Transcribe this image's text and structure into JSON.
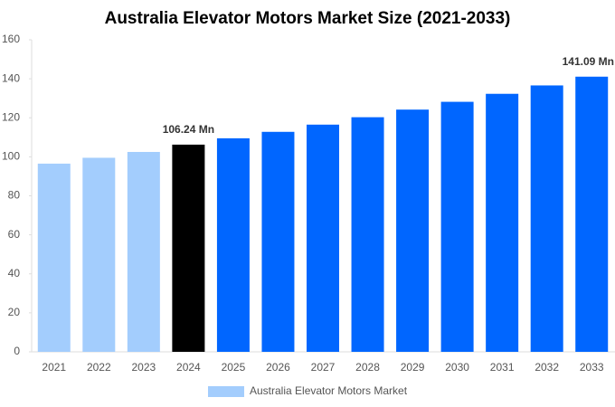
{
  "chart_data": {
    "type": "bar",
    "title": "Australia Elevator Motors Market Size (2021-2033)",
    "categories": [
      "2021",
      "2022",
      "2023",
      "2024",
      "2025",
      "2026",
      "2027",
      "2028",
      "2029",
      "2030",
      "2031",
      "2032",
      "2033"
    ],
    "series": [
      {
        "name": "Australia Elevator Motors Market",
        "color": "#a3cdfd",
        "bar_colors": [
          "#a3cdfd",
          "#a3cdfd",
          "#a3cdfd",
          "#000000",
          "#0066ff",
          "#0066ff",
          "#0066ff",
          "#0066ff",
          "#0066ff",
          "#0066ff",
          "#0066ff",
          "#0066ff",
          "#0066ff"
        ],
        "values": [
          96.5,
          99.5,
          102.5,
          106.24,
          109.5,
          112.8,
          116.5,
          120.3,
          124.2,
          128.2,
          132.3,
          136.6,
          141.09
        ],
        "value_labels": [
          null,
          null,
          null,
          "106.24 Mn",
          null,
          null,
          null,
          null,
          null,
          null,
          null,
          null,
          "141.09 Mn"
        ]
      }
    ],
    "ylim": [
      0,
      160
    ],
    "yticks": [
      0,
      20,
      40,
      60,
      80,
      100,
      120,
      140,
      160
    ],
    "grid": false,
    "legend": "bottom"
  }
}
